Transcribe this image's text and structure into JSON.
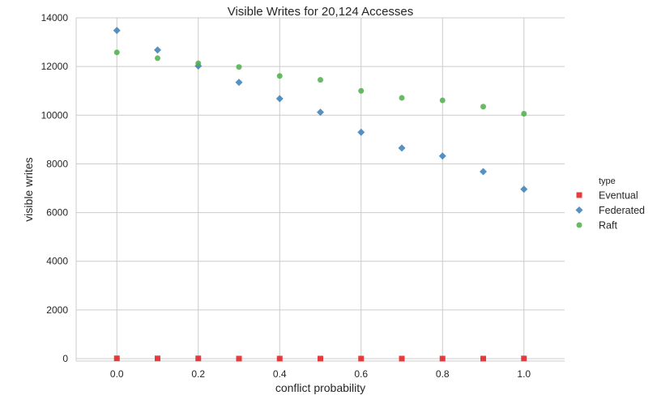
{
  "chart_data": {
    "type": "scatter",
    "title": "Visible Writes for 20,124 Accesses",
    "xlabel": "conflict probability",
    "ylabel": "visible writes",
    "xlim": [
      -0.1,
      1.1
    ],
    "ylim": [
      -100,
      14000
    ],
    "x_ticks": [
      0.0,
      0.2,
      0.4,
      0.6,
      0.8,
      1.0
    ],
    "x_tick_labels": [
      "0.0",
      "0.2",
      "0.4",
      "0.6",
      "0.8",
      "1.0"
    ],
    "y_ticks": [
      0,
      2000,
      4000,
      6000,
      8000,
      10000,
      12000,
      14000
    ],
    "y_tick_labels": [
      "0",
      "2000",
      "4000",
      "6000",
      "8000",
      "10000",
      "12000",
      "14000"
    ],
    "grid": true,
    "legend": {
      "title": "type",
      "placement": "right-outside"
    },
    "x": [
      0.0,
      0.1,
      0.2,
      0.3,
      0.4,
      0.5,
      0.6,
      0.7,
      0.8,
      0.9,
      1.0
    ],
    "series": [
      {
        "name": "Eventual",
        "marker": "square",
        "color": "#e41a1c",
        "values": [
          10,
          8,
          8,
          0,
          0,
          0,
          0,
          0,
          0,
          0,
          5
        ]
      },
      {
        "name": "Federated",
        "marker": "diamond",
        "color": "#377eb8",
        "values": [
          13480,
          12680,
          12020,
          11350,
          10680,
          10120,
          9300,
          8650,
          8320,
          7680,
          6960
        ]
      },
      {
        "name": "Raft",
        "marker": "circle",
        "color": "#4daf4a",
        "values": [
          12580,
          12340,
          12130,
          11980,
          11610,
          11450,
          11000,
          10710,
          10610,
          10350,
          10060
        ]
      }
    ]
  }
}
